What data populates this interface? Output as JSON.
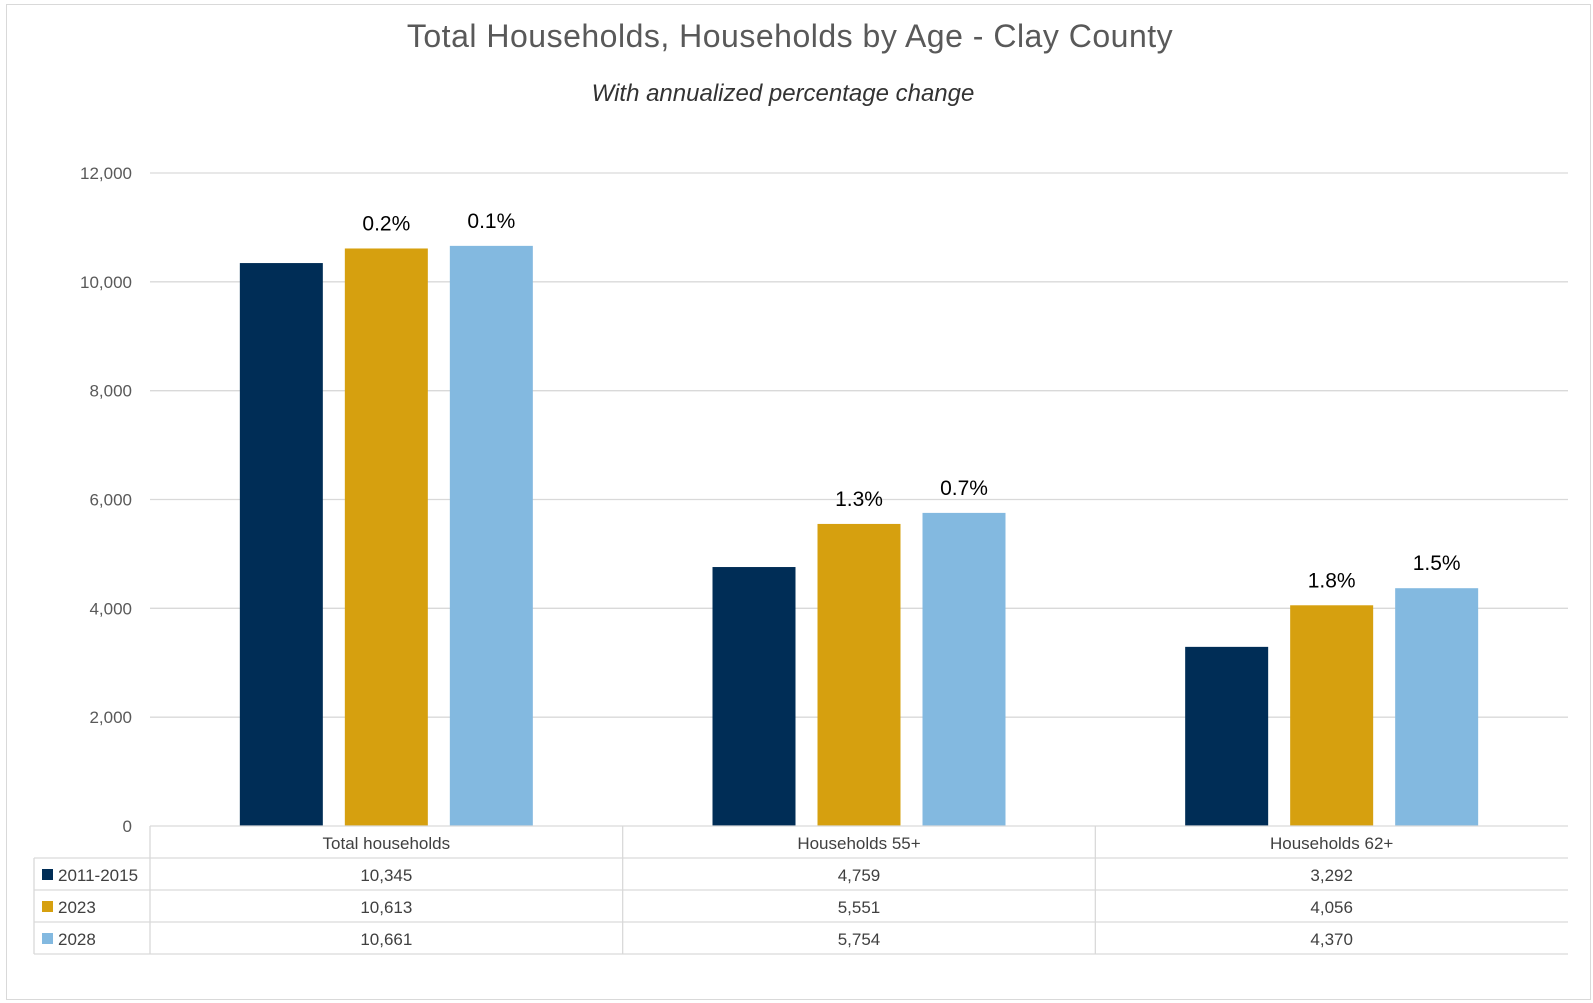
{
  "chart_data": {
    "type": "bar",
    "title": "Total Households, Households by Age - Clay County",
    "subtitle": "With annualized percentage change",
    "categories": [
      "Total households",
      "Households 55+",
      "Households 62+"
    ],
    "series": [
      {
        "name": "2011-2015",
        "color": "#002d56",
        "values": [
          10345,
          4759,
          3292
        ],
        "display": [
          "10,345",
          "4,759",
          "3,292"
        ],
        "labels": [
          "",
          "",
          ""
        ]
      },
      {
        "name": "2023",
        "color": "#d6a00f",
        "values": [
          10613,
          5551,
          4056
        ],
        "display": [
          "10,613",
          "5,551",
          "4,056"
        ],
        "labels": [
          "0.2%",
          "1.3%",
          "1.8%"
        ]
      },
      {
        "name": "2028",
        "color": "#83b9e0",
        "values": [
          10661,
          5754,
          4370
        ],
        "display": [
          "10,661",
          "5,754",
          "4,370"
        ],
        "labels": [
          "0.1%",
          "0.7%",
          "1.5%"
        ]
      }
    ],
    "ylim": [
      0,
      12000
    ],
    "yticks": [
      "0",
      "2,000",
      "4,000",
      "6,000",
      "8,000",
      "10,000",
      "12,000"
    ],
    "grid": true,
    "legend": "data-table"
  }
}
